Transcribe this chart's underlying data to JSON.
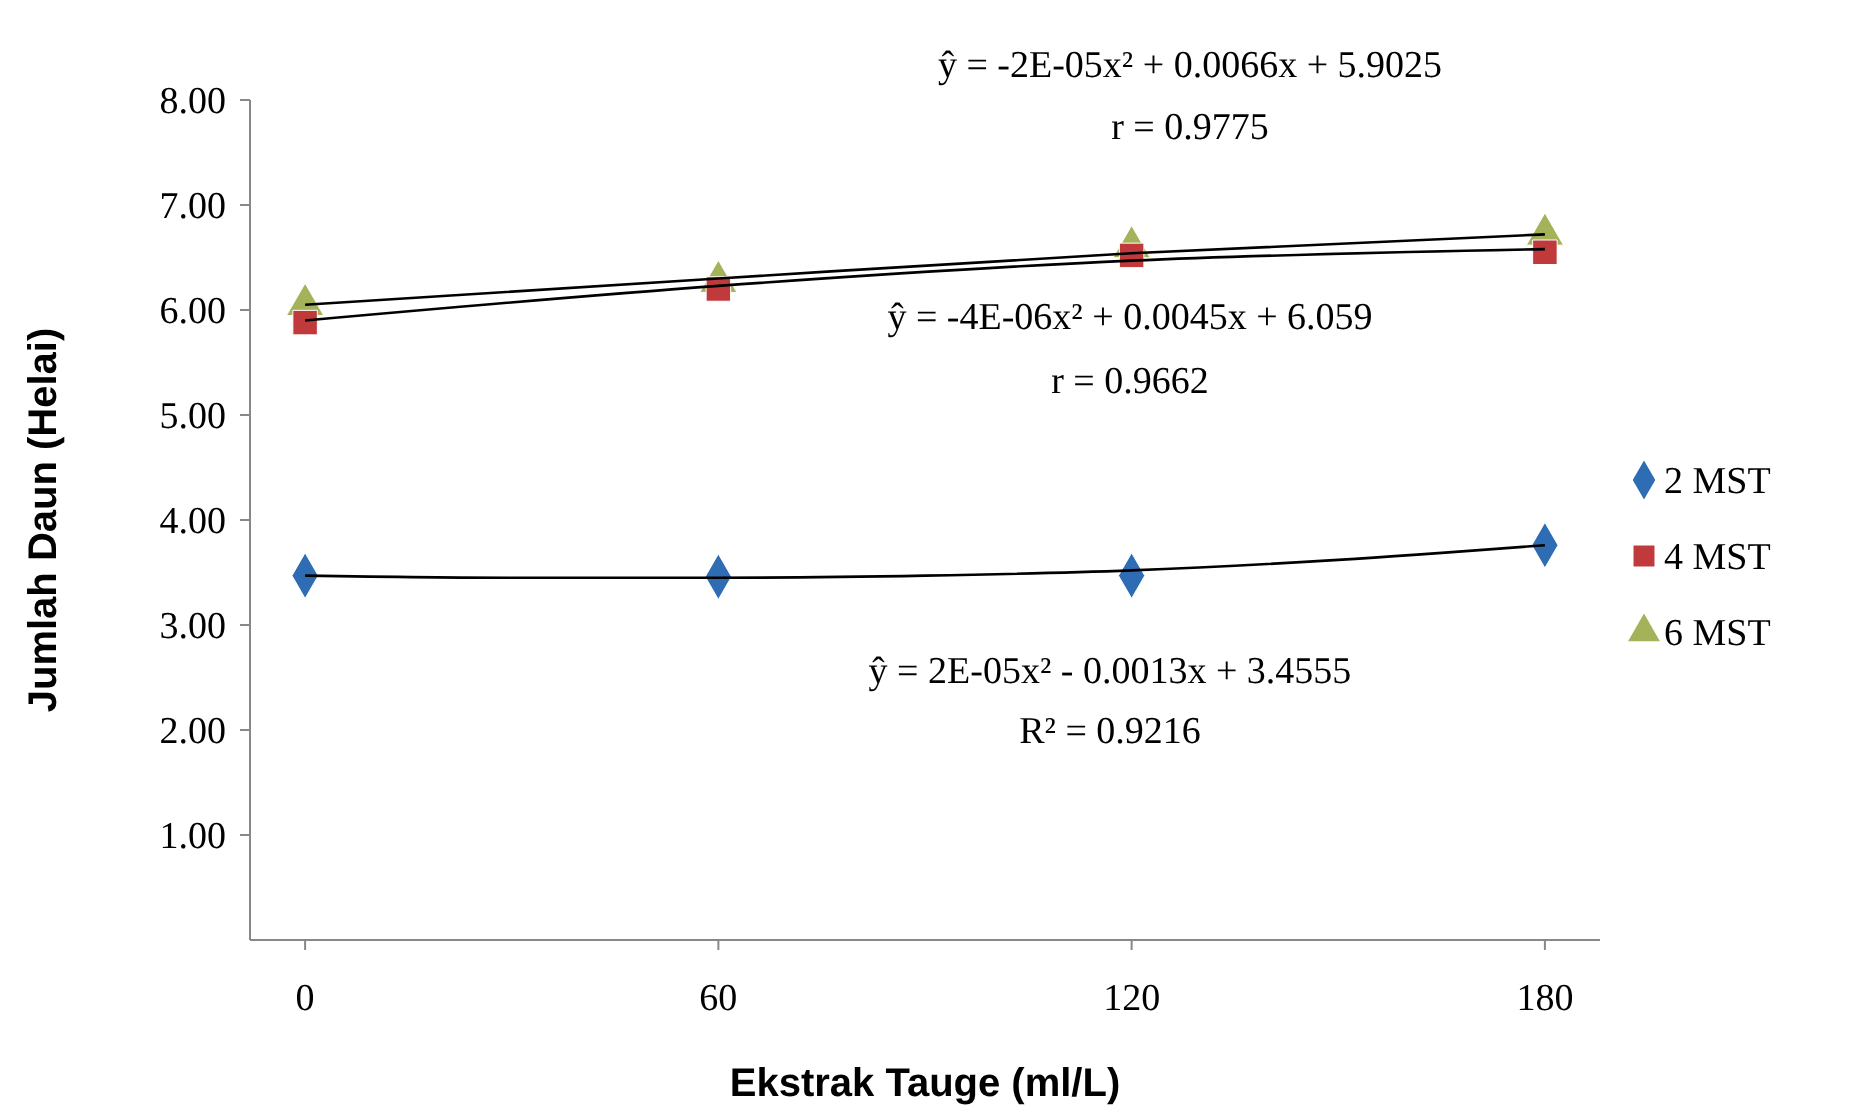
{
  "chart_data": {
    "type": "scatter",
    "xlabel": "Ekstrak Tauge (ml/L)",
    "ylabel": "Jumlah Daun (Helai)",
    "x": [
      0,
      60,
      120,
      180
    ],
    "xlim": [
      -8,
      188
    ],
    "xticks": [
      0,
      60,
      120,
      180
    ],
    "ylim": [
      0,
      8
    ],
    "yticks": [
      {
        "value": 1,
        "label": "1.00"
      },
      {
        "value": 2,
        "label": "2.00"
      },
      {
        "value": 3,
        "label": "3.00"
      },
      {
        "value": 4,
        "label": "4.00"
      },
      {
        "value": 5,
        "label": "5.00"
      },
      {
        "value": 6,
        "label": "6.00"
      },
      {
        "value": 7,
        "label": "7.00"
      },
      {
        "value": 8,
        "label": "8.00"
      }
    ],
    "legend": "right",
    "series": [
      {
        "name": "2 MST",
        "color": "#2e6db4",
        "marker": "diamond",
        "values": [
          3.47,
          3.46,
          3.47,
          3.76
        ]
      },
      {
        "name": "4 MST",
        "color": "#c0393b",
        "marker": "square",
        "values": [
          5.88,
          6.2,
          6.52,
          6.55
        ]
      },
      {
        "name": "6 MST",
        "color": "#a4b35a",
        "marker": "triangle",
        "values": [
          6.05,
          6.27,
          6.6,
          6.72
        ]
      },
      {
        "type": "line",
        "color": "#000000",
        "x": [
          0,
          60,
          120,
          180
        ],
        "values": [
          5.9,
          6.23,
          6.47,
          6.58
        ]
      },
      {
        "type": "line",
        "color": "#000000",
        "x": [
          0,
          60,
          120,
          180
        ],
        "values": [
          6.05,
          6.3,
          6.54,
          6.72
        ]
      },
      {
        "type": "line",
        "color": "#000000",
        "x": [
          0,
          30,
          60,
          90,
          120,
          150,
          180
        ],
        "values": [
          3.47,
          3.45,
          3.45,
          3.47,
          3.52,
          3.62,
          3.76
        ]
      }
    ],
    "annotations": [
      "ŷ = -2E-05x² + 0.0066x + 5.9025",
      "r = 0.9775",
      "ŷ = -4E-06x² + 0.0045x + 6.059",
      "r = 0.9662",
      "ŷ = 2E-05x² - 0.0013x + 3.4555",
      "R² = 0.9216"
    ]
  }
}
